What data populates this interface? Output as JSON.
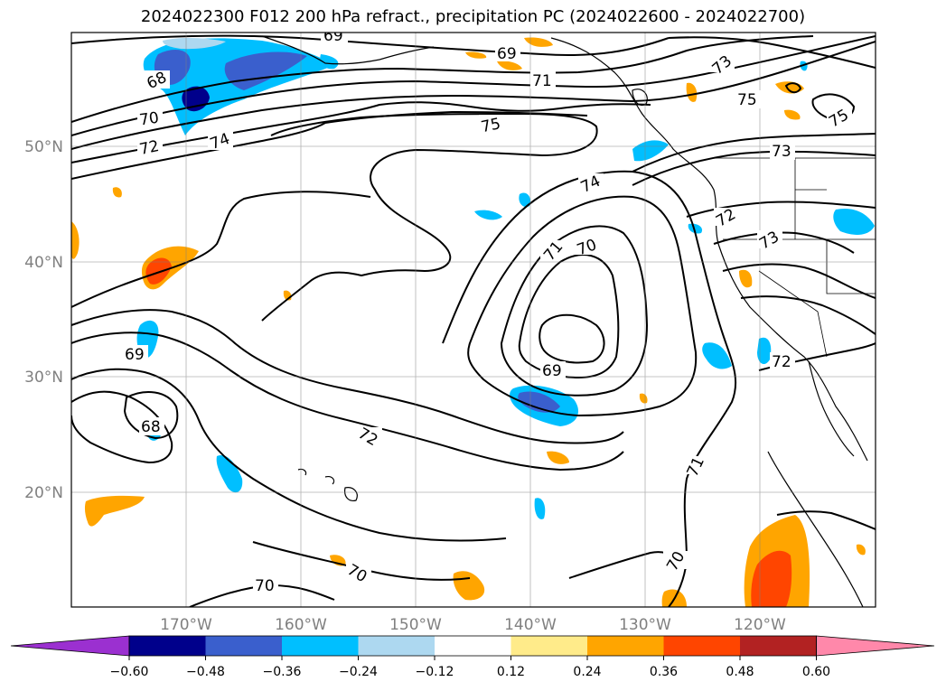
{
  "title": "2024022300 F012 200 hPa refract., precipitation PC (2024022600 - 2024022700)",
  "map": {
    "lat_labels": [
      "50°N",
      "40°N",
      "30°N",
      "20°N"
    ],
    "lon_labels": [
      "170°W",
      "160°W",
      "150°W",
      "140°W",
      "130°W",
      "120°W"
    ],
    "grid_lines": true,
    "contour_labels": [
      "69",
      "68",
      "70",
      "72",
      "74",
      "75",
      "71",
      "73",
      "70",
      "69",
      "68",
      "69",
      "72",
      "71",
      "70",
      "70",
      "72",
      "73",
      "72",
      "71",
      "75",
      "75",
      "73",
      "69",
      "70"
    ]
  },
  "colorbar": {
    "ticks": [
      "−0.60",
      "−0.48",
      "−0.36",
      "−0.24",
      "−0.12",
      "0.12",
      "0.24",
      "0.36",
      "0.48",
      "0.60"
    ],
    "colors": [
      "#9b30d0",
      "#00008b",
      "#3a5fcd",
      "#00bfff",
      "#add8f0",
      "#ffffff",
      "#ffeb8a",
      "#ffa500",
      "#ff4500",
      "#b22222",
      "#ff88aa"
    ]
  }
}
